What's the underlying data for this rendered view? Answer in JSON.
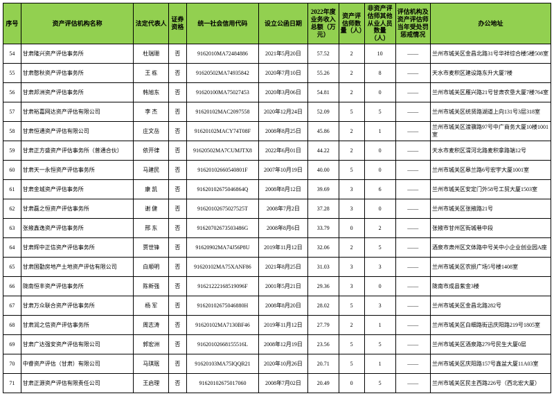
{
  "headers": {
    "idx": "序号",
    "name": "资产评估机构名称",
    "rep": "法定代表人",
    "cert": "证券资格",
    "code": "统一社会信用代码",
    "date": "设立公函日期",
    "rev": "2022年度业务收入总额（万元）",
    "cnt1": "资产评估师数量（人）",
    "cnt2": "非资产评估师其他从业人员数量（人）",
    "pen": "评估机构及资产评估师当年受处罚惩戒情况",
    "addr": "办公地址"
  },
  "rows": [
    {
      "idx": "54",
      "name": "甘肃隆兴资产评估事务所",
      "rep": "杜瑞珊",
      "cert": "否",
      "code": "9162010MA72484886",
      "date": "2021年5月20日",
      "rev": "57.52",
      "cnt1": "2",
      "cnt2": "10",
      "pen": "——",
      "addr": "兰州市城关区金昌北路31号华祥综合楼5楼508室"
    },
    {
      "idx": "55",
      "name": "甘肃憨秋资产评估事务所",
      "rep": "王 栋",
      "cert": "否",
      "code": "91620502MA74935842",
      "date": "2020年7月10日",
      "rev": "55.26",
      "cnt1": "2",
      "cnt2": "8",
      "pen": "——",
      "addr": "天水市麦积区建设路东升大厦7楼"
    },
    {
      "idx": "56",
      "name": "甘肃邦洲资产评估事务所",
      "rep": "韩旭东",
      "cert": "否",
      "code": "91620100MA75027453",
      "date": "2020年3月06日",
      "rev": "54.81",
      "cnt1": "2",
      "cnt2": "0",
      "pen": "——",
      "addr": "兰州市城关区雁兴路21号甘肃农垦大厦7楼764室"
    },
    {
      "idx": "57",
      "name": "甘肃裕嘉网达资产评估有限公司",
      "rep": "李 杰",
      "cert": "否",
      "code": "91620102MAC2097558",
      "date": "2020年12月24日",
      "rev": "52.09",
      "cnt1": "5",
      "cnt2": "5",
      "pen": "——",
      "addr": "兰州市城关区统贤路湖道上向131号3层318室"
    },
    {
      "idx": "58",
      "name": "甘肃恒通资产评估有限公司",
      "rep": "庄文岳",
      "cert": "否",
      "code": "91620102MACY74T08F",
      "date": "2008年8月25日",
      "rev": "45.86",
      "cnt1": "2",
      "cnt2": "1",
      "pen": "——",
      "addr": "兰州市城关区渡骥路97号中广商务大厦10楼1001室"
    },
    {
      "idx": "59",
      "name": "甘肃正方盛资产评估事务所（普通合伙）",
      "rep": "依开律",
      "cert": "否",
      "code": "91620502MA7CUMJTX8",
      "date": "2022年6月01日",
      "rev": "44.22",
      "cnt1": "2",
      "cnt2": "0",
      "pen": "——",
      "addr": "天水市麦积区渭河北路麦积拿路端12号"
    },
    {
      "idx": "60",
      "name": "甘肃天一永恒资产评估事务所",
      "rep": "马建民",
      "cert": "否",
      "code": "91620102660540801F",
      "date": "2007年10月19日",
      "rev": "40.00",
      "cnt1": "5",
      "cnt2": "0",
      "pen": "——",
      "addr": "兰州市城关区皋兰路6号宏宇大厦1001室"
    },
    {
      "idx": "61",
      "name": "甘肃金城资产评估事务所",
      "rep": "康 凯",
      "cert": "否",
      "code": "91620102675046864Q",
      "date": "2008年8月12日",
      "rev": "39.69",
      "cnt1": "3",
      "cnt2": "6",
      "pen": "——",
      "addr": "兰州市城关区安定门外58号工贸大厦1503室"
    },
    {
      "idx": "62",
      "name": "甘肃磊之恒资产评估事务所",
      "rep": "谢 健",
      "cert": "否",
      "code": "91620102675027525T",
      "date": "2008年7月2日",
      "rev": "37.28",
      "cnt1": "3",
      "cnt2": "0",
      "pen": "——",
      "addr": "兰州市城关区张掖路21号"
    },
    {
      "idx": "63",
      "name": "张掖鑫逸资产评估事务所",
      "rep": "邢 东",
      "cert": "否",
      "code": "91620702673503486G",
      "date": "2008年8月6日",
      "rev": "33.79",
      "cnt1": "0",
      "cnt2": "2",
      "pen": "——",
      "addr": "张掖市甘州区街城巷中段"
    },
    {
      "idx": "64",
      "name": "甘肃辉中正信资产评估事务所",
      "rep": "贾世锋",
      "cert": "否",
      "code": "91620902MA74J56P8U",
      "date": "2019年11月12日",
      "rev": "32.06",
      "cnt1": "2",
      "cnt2": "5",
      "pen": "——",
      "addr": "酒泉市肃州区文体路中号关中小企业创业园A座"
    },
    {
      "idx": "65",
      "name": "甘肃国勤房地产土地资产评估有限公司",
      "rep": "白顺明",
      "cert": "否",
      "code": "91620102MA75XANF86",
      "date": "2021年8月25日",
      "rev": "31.03",
      "cnt1": "3",
      "cnt2": "3",
      "pen": "——",
      "addr": "兰州市城关区农损广场5号楼1408室"
    },
    {
      "idx": "66",
      "name": "陇南恒丰资产评估事务所",
      "rep": "陈新强",
      "cert": "否",
      "code": "91621222168519096F",
      "date": "2001年5月21日",
      "rev": "29.36",
      "cnt1": "3",
      "cnt2": "0",
      "pen": "——",
      "addr": "陇南市成县紫金3楼"
    },
    {
      "idx": "67",
      "name": "甘肃万众联合资产评估事务所",
      "rep": "杨 军",
      "cert": "否",
      "code": "91620102675046880H",
      "date": "2008年8月20日",
      "rev": "28.02",
      "cnt1": "5",
      "cnt2": "3",
      "pen": "——",
      "addr": "兰州市城关区金昌北路282号"
    },
    {
      "idx": "68",
      "name": "甘肃润之信资产评估事务所",
      "rep": "周志涛",
      "cert": "否",
      "code": "91620102MA7130BF46",
      "date": "2019年11月12日",
      "rev": "27.79",
      "cnt1": "2",
      "cnt2": "1",
      "pen": "——",
      "addr": "兰州市城关区白细路街迅庆阳路219号1805室"
    },
    {
      "idx": "69",
      "name": "甘肃广达强安资产评估有限公司",
      "rep": "郭宏洲",
      "cert": "否",
      "code": "91620102668155516L",
      "date": "2008年12月19日",
      "rev": "23.56",
      "cnt1": "5",
      "cnt2": "5",
      "pen": "——",
      "addr": "兰州市城关区酒泉路279号民生大厦0层"
    },
    {
      "idx": "70",
      "name": "中睿资产评估（甘肃）有限公司",
      "rep": "马琪珉",
      "cert": "否",
      "code": "91620103MA75IQQR21",
      "date": "2020年10月26日",
      "rev": "20.71",
      "cnt1": "5",
      "cnt2": "1",
      "pen": "——",
      "addr": "兰州市城关区庆阳路157号鑫盆大厦11A03室"
    },
    {
      "idx": "71",
      "name": "甘肃正源资产评估有限责任公司",
      "rep": "王启理",
      "cert": "否",
      "code": "91620102675017060",
      "date": "2008年7月02日",
      "rev": "20.49",
      "cnt1": "0",
      "cnt2": "5",
      "pen": "——",
      "addr": "兰州市城关区民主西路226号（西北宏大厦）"
    }
  ],
  "style": {
    "header_bg": "#92d050",
    "border": "#000000",
    "font": "SimSun",
    "base_fs": 8
  }
}
